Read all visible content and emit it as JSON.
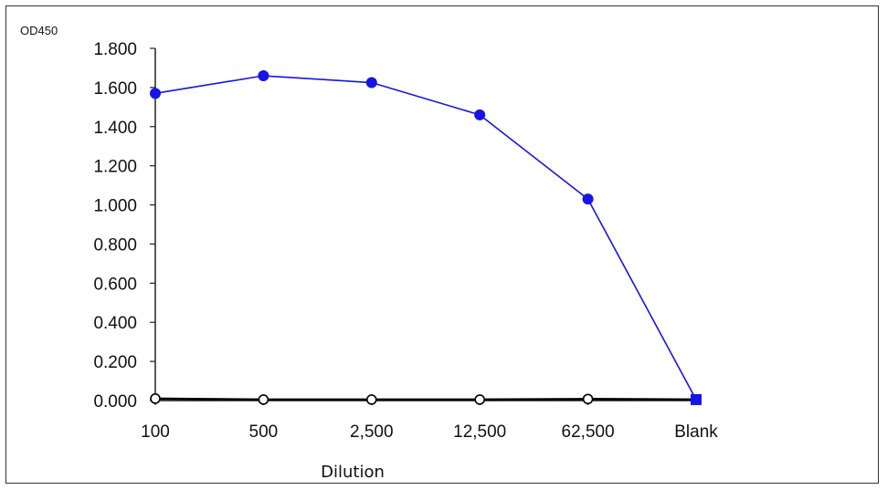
{
  "chart_data": {
    "type": "line",
    "ylabel": "OD450",
    "xlabel": "Dilution",
    "categories": [
      "100",
      "500",
      "2,500",
      "12,500",
      "62,500",
      "Blank"
    ],
    "ylim": [
      0,
      1.8
    ],
    "yticks": [
      "1.800",
      "1.600",
      "1.400",
      "1.200",
      "1.000",
      "0.800",
      "0.600",
      "0.400",
      "0.200",
      "0.000"
    ],
    "yticks_values": [
      1.8,
      1.6,
      1.4,
      1.2,
      1.0,
      0.8,
      0.6,
      0.4,
      0.2,
      0.0
    ],
    "grid": false,
    "series": [
      {
        "values": [
          1.57,
          1.66,
          1.625,
          1.46,
          1.03,
          0.005
        ],
        "color": "#1515e6",
        "marker": "filled-circle",
        "last_marker": "filled-square"
      },
      {
        "values": [
          0.01,
          0.005,
          0.005,
          0.005,
          0.008,
          0.005
        ],
        "color": "#000000",
        "marker": "open-circle"
      }
    ]
  }
}
